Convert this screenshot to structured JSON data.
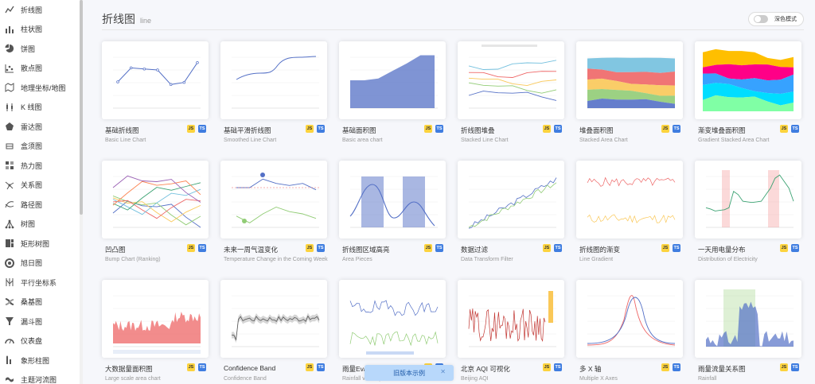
{
  "sidebar": {
    "items": [
      {
        "label": "折线图",
        "icon": "line-chart-icon"
      },
      {
        "label": "柱状图",
        "icon": "bar-chart-icon"
      },
      {
        "label": "饼图",
        "icon": "pie-chart-icon"
      },
      {
        "label": "散点图",
        "icon": "scatter-chart-icon"
      },
      {
        "label": "地理坐标/地图",
        "icon": "map-icon"
      },
      {
        "label": "K 线图",
        "icon": "candlestick-icon"
      },
      {
        "label": "雷达图",
        "icon": "radar-icon"
      },
      {
        "label": "盒须图",
        "icon": "boxplot-icon"
      },
      {
        "label": "热力图",
        "icon": "heatmap-icon"
      },
      {
        "label": "关系图",
        "icon": "graph-icon"
      },
      {
        "label": "路径图",
        "icon": "lines-icon"
      },
      {
        "label": "树图",
        "icon": "tree-icon"
      },
      {
        "label": "矩形树图",
        "icon": "treemap-icon"
      },
      {
        "label": "旭日图",
        "icon": "sunburst-icon"
      },
      {
        "label": "平行坐标系",
        "icon": "parallel-icon"
      },
      {
        "label": "桑基图",
        "icon": "sankey-icon"
      },
      {
        "label": "漏斗图",
        "icon": "funnel-icon"
      },
      {
        "label": "仪表盘",
        "icon": "gauge-icon"
      },
      {
        "label": "象形柱图",
        "icon": "pictorial-bar-icon"
      },
      {
        "label": "主题河流图",
        "icon": "theme-river-icon"
      }
    ]
  },
  "header": {
    "title": "折线图",
    "subtitle": "line"
  },
  "dark_mode": {
    "label": "深色模式",
    "enabled": false
  },
  "badges": {
    "js": "JS",
    "ts": "TS"
  },
  "cards": [
    {
      "name": "基础折线图",
      "sub": "Basic Line Chart",
      "thumb": "basic-line"
    },
    {
      "name": "基础平滑折线图",
      "sub": "Smoothed Line Chart",
      "thumb": "smooth-line"
    },
    {
      "name": "基础面积图",
      "sub": "Basic area chart",
      "thumb": "basic-area"
    },
    {
      "name": "折线图堆叠",
      "sub": "Stacked Line Chart",
      "thumb": "stacked-line"
    },
    {
      "name": "堆叠面积图",
      "sub": "Stacked Area Chart",
      "thumb": "stacked-area"
    },
    {
      "name": "渐变堆叠面积图",
      "sub": "Gradient Stacked Area Chart",
      "thumb": "gradient-stacked"
    },
    {
      "name": "凹凸图",
      "sub": "Bump Chart (Ranking)",
      "thumb": "bump"
    },
    {
      "name": "未来一周气温变化",
      "sub": "Temperature Change in the Coming Week",
      "thumb": "temperature"
    },
    {
      "name": "折线图区域高亮",
      "sub": "Area Pieces",
      "thumb": "area-pieces"
    },
    {
      "name": "数据过滤",
      "sub": "Data Transform Filter",
      "thumb": "filter"
    },
    {
      "name": "折线图的渐变",
      "sub": "Line Gradient",
      "thumb": "line-gradient"
    },
    {
      "name": "一天用电量分布",
      "sub": "Distribution of Electricity",
      "thumb": "electricity"
    },
    {
      "name": "大数据量面积图",
      "sub": "Large scale area chart",
      "thumb": "large-area"
    },
    {
      "name": "Confidence Band",
      "sub": "Confidence Band",
      "thumb": "confidence"
    },
    {
      "name": "雨量Evaporation关系图",
      "sub": "Rainfall vs Evaporation",
      "thumb": "rainfall-evap"
    },
    {
      "name": "北京 AQI 可视化",
      "sub": "Beijing AQI",
      "thumb": "aqi"
    },
    {
      "name": "多 X 轴",
      "sub": "Multiple X Axes",
      "thumb": "multi-x"
    },
    {
      "name": "雨量流量关系图",
      "sub": "Rainfall",
      "thumb": "rainfall"
    }
  ],
  "toast": {
    "label": "旧版本示例",
    "close": "✕"
  },
  "colors": {
    "accent": "#5470c6",
    "green": "#91cc75",
    "yellow": "#fac858",
    "red": "#ee6666"
  }
}
